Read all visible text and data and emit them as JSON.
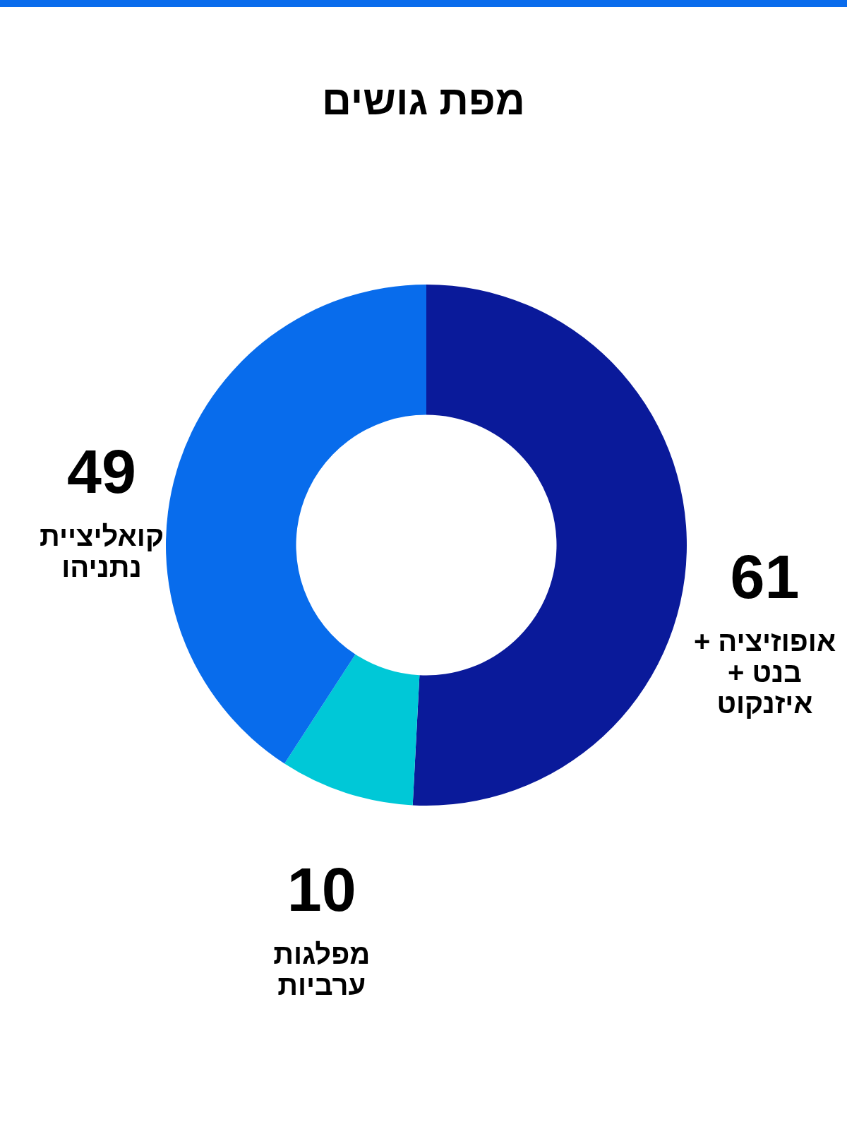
{
  "chart_data": {
    "type": "donut",
    "title": "מפת גושים",
    "categories": [
      "אופוזיציה + בנט + איזנקוט",
      "מפלגות ערביות",
      "קואליציית נתניהו"
    ],
    "values": [
      61,
      10,
      49
    ],
    "colors": [
      "#0a1a9a",
      "#00c8d7",
      "#086cec"
    ],
    "data_labels": true
  }
}
